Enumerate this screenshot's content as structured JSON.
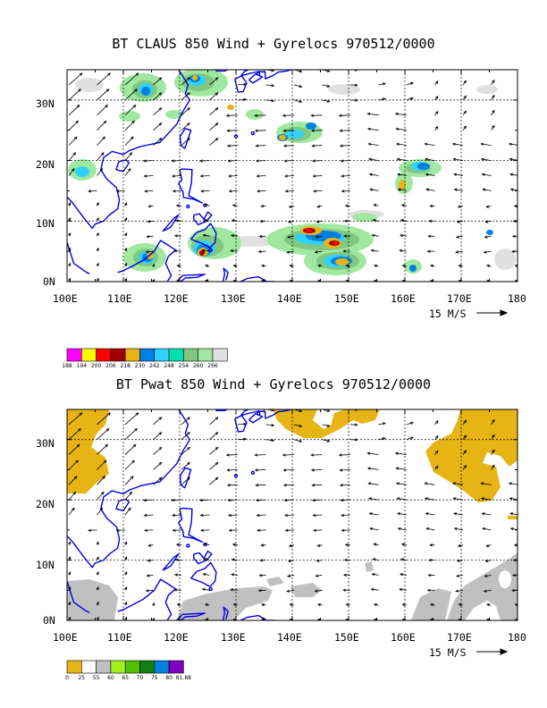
{
  "panels": [
    {
      "title": "BT CLAUS 850 Wind + Gyrelocs 970512/0000",
      "y_labels": [
        "30N",
        "20N",
        "10N",
        "0N"
      ],
      "x_labels": [
        "100E",
        "110E",
        "120E",
        "130E",
        "140E",
        "150E",
        "160E",
        "170E",
        "180"
      ],
      "ref_vector": "15 M/S",
      "colorbar": {
        "colors": [
          "#ff00ff",
          "#ffff00",
          "#ff0000",
          "#a00000",
          "#e6b414",
          "#0080e0",
          "#30d0ff",
          "#00e0b0",
          "#80c880",
          "#a0e8a0",
          "#e0e0e0"
        ],
        "labels": [
          "188",
          "194",
          "200",
          "206",
          "218",
          "230",
          "242",
          "248",
          "254",
          "260",
          "266"
        ]
      }
    },
    {
      "title": "BT Pwat 850 Wind + Gyrelocs 970512/0000",
      "y_labels": [
        "30N",
        "20N",
        "10N",
        "0N"
      ],
      "x_labels": [
        "100E",
        "110E",
        "120E",
        "130E",
        "140E",
        "150E",
        "160E",
        "170E",
        "180"
      ],
      "ref_vector": "15 M/S",
      "colorbar": {
        "colors": [
          "#e6b414",
          "#ffffff",
          "#c0c0c0",
          "#a0f020",
          "#50c000",
          "#108010",
          "#0080e0",
          "#8000c0"
        ],
        "labels": [
          "0",
          "25",
          "55",
          "60",
          "65",
          "70",
          "75",
          "80",
          "81.88"
        ]
      }
    }
  ]
}
